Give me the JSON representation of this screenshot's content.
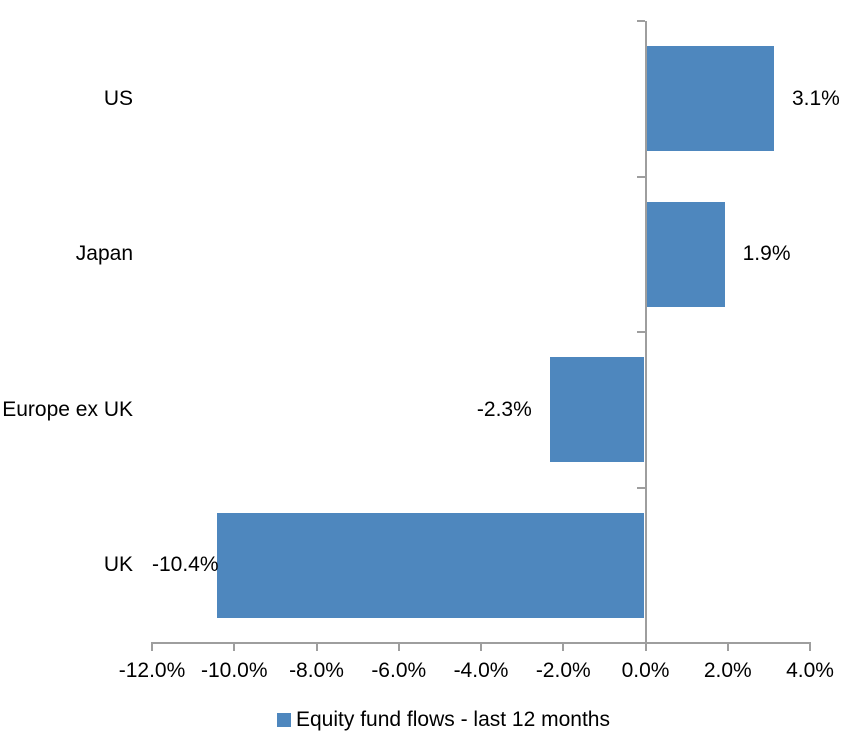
{
  "chart_data": {
    "type": "bar",
    "orientation": "horizontal",
    "title": "",
    "categories": [
      "US",
      "Japan",
      "Europe ex UK",
      "UK"
    ],
    "values": [
      3.1,
      1.9,
      -2.3,
      -10.4
    ],
    "value_labels": [
      "3.1%",
      "1.9%",
      "-2.3%",
      "-10.4%"
    ],
    "series_name": "Equity fund flows - last 12 months",
    "xlim": [
      -12,
      4
    ],
    "x_ticks": [
      {
        "value": -12,
        "label": "-12.0%"
      },
      {
        "value": -10,
        "label": "-10.0%"
      },
      {
        "value": -8,
        "label": "-8.0%"
      },
      {
        "value": -6,
        "label": "-6.0%"
      },
      {
        "value": -4,
        "label": "-4.0%"
      },
      {
        "value": -2,
        "label": "-2.0%"
      },
      {
        "value": 0,
        "label": "0.0%"
      },
      {
        "value": 2,
        "label": "2.0%"
      },
      {
        "value": 4,
        "label": "4.0%"
      }
    ],
    "grid": false,
    "legend_position": "bottom",
    "bar_color": "#4E87BE",
    "axis_color": "#9E9E9E",
    "text_color": "#000000",
    "background_color": "#FFFFFF"
  }
}
